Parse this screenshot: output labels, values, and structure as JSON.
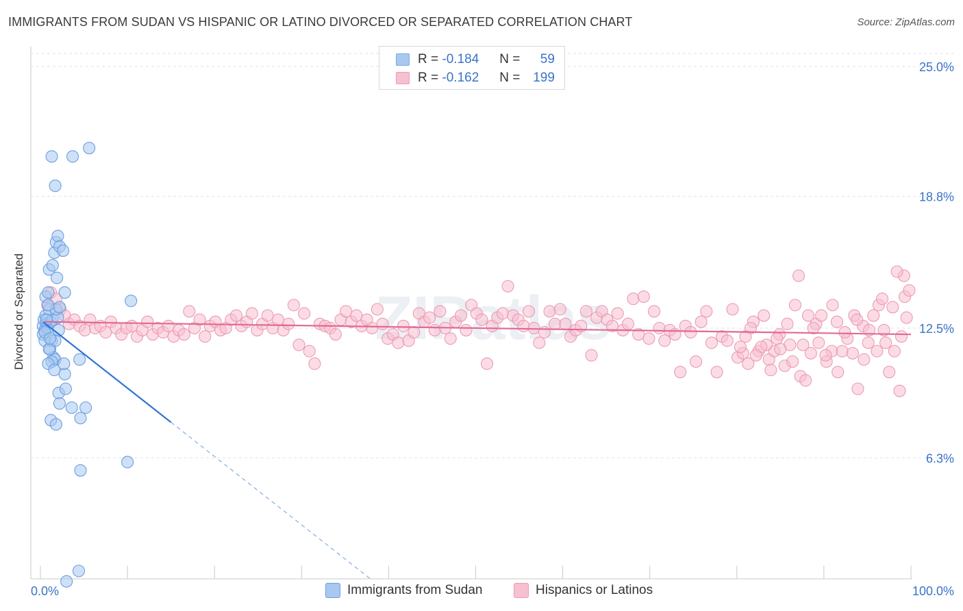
{
  "header": {
    "title": "IMMIGRANTS FROM SUDAN VS HISPANIC OR LATINO DIVORCED OR SEPARATED CORRELATION CHART",
    "source": "Source: ZipAtlas.com"
  },
  "legend": {
    "rows": [
      {
        "r_label": "R =",
        "r_value": "-0.184",
        "n_label": "N =",
        "n_value": "59",
        "color": "#a8c8f0",
        "border": "#7aa8e0"
      },
      {
        "r_label": "R =",
        "r_value": "-0.162",
        "n_label": "N =",
        "n_value": "199",
        "color": "#f7c0d0",
        "border": "#ec9ab4"
      }
    ]
  },
  "bottom_legend": [
    {
      "label": "Immigrants from Sudan",
      "color": "#a8c8f0",
      "border": "#6a9ee0"
    },
    {
      "label": "Hispanics or Latinos",
      "color": "#f7c0d0",
      "border": "#ec9ab4"
    }
  ],
  "chart_data": {
    "type": "scatter",
    "ylabel": "Divorced or Separated",
    "xlim": [
      0,
      100
    ],
    "ylim": [
      0,
      25.0
    ],
    "x_tick_labels": [
      "0.0%",
      "100.0%"
    ],
    "y_ticks": [
      {
        "value": 25.0,
        "label": "25.0%"
      },
      {
        "value": 18.8,
        "label": "18.8%"
      },
      {
        "value": 12.5,
        "label": "12.5%"
      },
      {
        "value": 6.3,
        "label": "6.3%"
      }
    ],
    "grid": true,
    "watermark": "ZIPatlas",
    "series": [
      {
        "name": "Immigrants from Sudan",
        "color": "#6a9ee0",
        "fill": "#a8c8f0",
        "trend": {
          "x0": 0.3,
          "y0": 12.8,
          "x1": 15.0,
          "y1": 8.0,
          "dash_to_x": 38.0
        },
        "points": [
          [
            0.3,
            12.6
          ],
          [
            0.4,
            12.9
          ],
          [
            0.5,
            12.4
          ],
          [
            0.6,
            13.1
          ],
          [
            0.7,
            12.7
          ],
          [
            0.3,
            12.2
          ],
          [
            0.5,
            11.9
          ],
          [
            0.8,
            12.5
          ],
          [
            1.0,
            13.4
          ],
          [
            1.2,
            12.8
          ],
          [
            0.6,
            14.0
          ],
          [
            0.9,
            14.2
          ],
          [
            1.0,
            15.3
          ],
          [
            1.4,
            15.5
          ],
          [
            1.6,
            16.1
          ],
          [
            1.8,
            16.6
          ],
          [
            2.0,
            16.9
          ],
          [
            2.2,
            16.4
          ],
          [
            2.6,
            16.2
          ],
          [
            1.9,
            14.9
          ],
          [
            2.8,
            14.2
          ],
          [
            1.3,
            20.7
          ],
          [
            3.7,
            20.7
          ],
          [
            5.6,
            21.1
          ],
          [
            1.7,
            19.3
          ],
          [
            1.1,
            11.5
          ],
          [
            1.5,
            11.1
          ],
          [
            1.7,
            11.0
          ],
          [
            1.3,
            10.9
          ],
          [
            0.9,
            10.8
          ],
          [
            1.6,
            10.5
          ],
          [
            2.8,
            10.3
          ],
          [
            2.7,
            10.8
          ],
          [
            4.5,
            11.0
          ],
          [
            2.1,
            9.4
          ],
          [
            2.9,
            9.6
          ],
          [
            2.2,
            8.9
          ],
          [
            3.6,
            8.7
          ],
          [
            5.2,
            8.7
          ],
          [
            1.2,
            8.1
          ],
          [
            1.8,
            7.9
          ],
          [
            4.6,
            8.2
          ],
          [
            10.0,
            6.1
          ],
          [
            4.6,
            5.7
          ],
          [
            10.4,
            13.8
          ],
          [
            4.4,
            0.9
          ],
          [
            3.0,
            0.4
          ],
          [
            1.3,
            11.9
          ],
          [
            1.7,
            11.9
          ],
          [
            1.0,
            11.5
          ],
          [
            0.5,
            12.3
          ],
          [
            1.4,
            12.9
          ],
          [
            2.0,
            13.0
          ],
          [
            2.1,
            12.4
          ],
          [
            1.8,
            13.4
          ],
          [
            0.7,
            12.9
          ],
          [
            2.2,
            13.5
          ],
          [
            0.9,
            13.6
          ],
          [
            1.1,
            12.0
          ]
        ]
      },
      {
        "name": "Hispanics or Latinos",
        "color": "#ec9ab4",
        "fill": "#f7c0d0",
        "trend": {
          "x0": 0.5,
          "y0": 12.8,
          "x1": 100.0,
          "y1": 12.2
        },
        "points": [
          [
            0.8,
            13.6
          ],
          [
            1.2,
            14.2
          ],
          [
            1.8,
            13.9
          ],
          [
            2.3,
            13.4
          ],
          [
            2.8,
            13.1
          ],
          [
            3.3,
            12.7
          ],
          [
            3.9,
            12.9
          ],
          [
            4.5,
            12.6
          ],
          [
            5.1,
            12.4
          ],
          [
            5.7,
            12.9
          ],
          [
            6.3,
            12.5
          ],
          [
            6.9,
            12.6
          ],
          [
            7.5,
            12.3
          ],
          [
            8.1,
            12.8
          ],
          [
            8.7,
            12.5
          ],
          [
            9.3,
            12.2
          ],
          [
            9.9,
            12.5
          ],
          [
            10.5,
            12.6
          ],
          [
            11.1,
            12.1
          ],
          [
            11.7,
            12.4
          ],
          [
            12.3,
            12.8
          ],
          [
            12.9,
            12.2
          ],
          [
            13.5,
            12.5
          ],
          [
            14.1,
            12.3
          ],
          [
            14.7,
            12.6
          ],
          [
            15.3,
            12.1
          ],
          [
            15.9,
            12.4
          ],
          [
            16.5,
            12.2
          ],
          [
            17.1,
            13.3
          ],
          [
            17.7,
            12.5
          ],
          [
            18.3,
            12.9
          ],
          [
            18.9,
            12.1
          ],
          [
            19.5,
            12.6
          ],
          [
            20.1,
            12.8
          ],
          [
            20.7,
            12.4
          ],
          [
            21.3,
            12.5
          ],
          [
            21.9,
            12.9
          ],
          [
            22.5,
            13.1
          ],
          [
            23.1,
            12.6
          ],
          [
            23.7,
            12.8
          ],
          [
            24.3,
            13.2
          ],
          [
            24.9,
            12.4
          ],
          [
            25.5,
            12.7
          ],
          [
            26.1,
            13.1
          ],
          [
            26.7,
            12.5
          ],
          [
            27.3,
            12.9
          ],
          [
            27.9,
            12.4
          ],
          [
            28.5,
            12.7
          ],
          [
            29.1,
            13.6
          ],
          [
            29.7,
            11.7
          ],
          [
            30.3,
            13.2
          ],
          [
            30.9,
            11.4
          ],
          [
            31.5,
            10.8
          ],
          [
            32.1,
            12.7
          ],
          [
            32.7,
            12.6
          ],
          [
            33.3,
            12.5
          ],
          [
            33.9,
            12.2
          ],
          [
            34.5,
            12.9
          ],
          [
            35.1,
            13.3
          ],
          [
            35.7,
            12.8
          ],
          [
            36.3,
            13.1
          ],
          [
            36.9,
            12.6
          ],
          [
            37.5,
            12.9
          ],
          [
            38.1,
            12.5
          ],
          [
            38.7,
            13.4
          ],
          [
            39.3,
            12.7
          ],
          [
            39.9,
            12.0
          ],
          [
            40.5,
            12.2
          ],
          [
            41.1,
            11.8
          ],
          [
            41.7,
            12.6
          ],
          [
            42.3,
            11.9
          ],
          [
            42.9,
            12.3
          ],
          [
            43.5,
            13.2
          ],
          [
            44.1,
            12.8
          ],
          [
            44.7,
            13.0
          ],
          [
            45.3,
            12.4
          ],
          [
            45.9,
            13.3
          ],
          [
            46.5,
            12.5
          ],
          [
            47.1,
            12.0
          ],
          [
            47.7,
            12.8
          ],
          [
            48.3,
            13.1
          ],
          [
            48.9,
            12.4
          ],
          [
            49.5,
            13.6
          ],
          [
            50.1,
            13.2
          ],
          [
            50.7,
            12.9
          ],
          [
            51.3,
            10.8
          ],
          [
            51.9,
            12.6
          ],
          [
            52.5,
            13.0
          ],
          [
            53.1,
            13.2
          ],
          [
            53.7,
            14.5
          ],
          [
            54.3,
            13.1
          ],
          [
            54.9,
            12.9
          ],
          [
            55.5,
            12.6
          ],
          [
            56.1,
            13.3
          ],
          [
            56.7,
            12.5
          ],
          [
            57.3,
            11.8
          ],
          [
            57.9,
            12.3
          ],
          [
            58.5,
            13.3
          ],
          [
            59.1,
            12.7
          ],
          [
            59.7,
            13.4
          ],
          [
            60.3,
            12.7
          ],
          [
            60.9,
            12.1
          ],
          [
            61.5,
            12.4
          ],
          [
            62.1,
            12.6
          ],
          [
            62.7,
            13.3
          ],
          [
            63.3,
            11.2
          ],
          [
            63.9,
            13.0
          ],
          [
            64.5,
            13.3
          ],
          [
            65.1,
            12.9
          ],
          [
            65.7,
            12.6
          ],
          [
            66.3,
            13.2
          ],
          [
            66.9,
            12.4
          ],
          [
            67.5,
            12.7
          ],
          [
            68.1,
            13.9
          ],
          [
            68.7,
            12.2
          ],
          [
            69.3,
            14.0
          ],
          [
            69.9,
            12.0
          ],
          [
            70.5,
            13.3
          ],
          [
            71.1,
            12.5
          ],
          [
            71.7,
            11.9
          ],
          [
            72.3,
            12.4
          ],
          [
            72.9,
            12.2
          ],
          [
            73.5,
            10.4
          ],
          [
            74.1,
            12.6
          ],
          [
            74.7,
            12.3
          ],
          [
            75.3,
            10.9
          ],
          [
            75.9,
            12.8
          ],
          [
            76.5,
            13.3
          ],
          [
            77.1,
            11.8
          ],
          [
            77.7,
            10.4
          ],
          [
            78.3,
            12.1
          ],
          [
            78.9,
            11.9
          ],
          [
            79.5,
            13.4
          ],
          [
            80.1,
            11.1
          ],
          [
            80.7,
            11.3
          ],
          [
            81.3,
            10.8
          ],
          [
            81.9,
            12.8
          ],
          [
            82.5,
            11.4
          ],
          [
            83.1,
            13.1
          ],
          [
            83.7,
            11.0
          ],
          [
            84.3,
            11.4
          ],
          [
            84.9,
            12.2
          ],
          [
            85.5,
            10.7
          ],
          [
            86.1,
            11.7
          ],
          [
            86.7,
            13.6
          ],
          [
            87.3,
            10.2
          ],
          [
            87.9,
            10.0
          ],
          [
            88.5,
            11.3
          ],
          [
            89.1,
            12.7
          ],
          [
            89.7,
            13.1
          ],
          [
            90.3,
            10.9
          ],
          [
            90.9,
            11.4
          ],
          [
            91.5,
            12.8
          ],
          [
            92.1,
            11.4
          ],
          [
            92.7,
            12.0
          ],
          [
            93.3,
            11.3
          ],
          [
            93.9,
            9.6
          ],
          [
            94.5,
            12.6
          ],
          [
            95.1,
            11.8
          ],
          [
            95.7,
            13.1
          ],
          [
            96.3,
            13.6
          ],
          [
            96.9,
            12.4
          ],
          [
            97.5,
            10.4
          ],
          [
            98.1,
            11.4
          ],
          [
            98.7,
            9.5
          ],
          [
            99.3,
            14.0
          ],
          [
            87.1,
            15.0
          ],
          [
            93.5,
            13.1
          ],
          [
            96.1,
            11.4
          ],
          [
            97.9,
            13.5
          ],
          [
            98.9,
            12.1
          ],
          [
            99.5,
            13.0
          ],
          [
            99.8,
            14.3
          ],
          [
            99.2,
            15.0
          ],
          [
            98.4,
            15.2
          ],
          [
            97.1,
            11.8
          ],
          [
            96.7,
            13.9
          ],
          [
            95.2,
            12.4
          ],
          [
            94.6,
            11.0
          ],
          [
            93.8,
            12.9
          ],
          [
            92.4,
            12.3
          ],
          [
            91.6,
            10.4
          ],
          [
            91.0,
            13.6
          ],
          [
            90.2,
            11.2
          ],
          [
            89.4,
            11.8
          ],
          [
            88.8,
            12.5
          ],
          [
            88.2,
            13.1
          ],
          [
            87.6,
            11.7
          ],
          [
            86.4,
            10.9
          ],
          [
            85.8,
            12.7
          ],
          [
            85.0,
            11.5
          ],
          [
            84.6,
            12.0
          ],
          [
            83.9,
            10.5
          ],
          [
            83.4,
            11.7
          ],
          [
            82.8,
            11.6
          ],
          [
            82.2,
            11.2
          ],
          [
            81.6,
            12.5
          ],
          [
            81.0,
            12.1
          ],
          [
            80.4,
            11.6
          ]
        ]
      }
    ]
  }
}
